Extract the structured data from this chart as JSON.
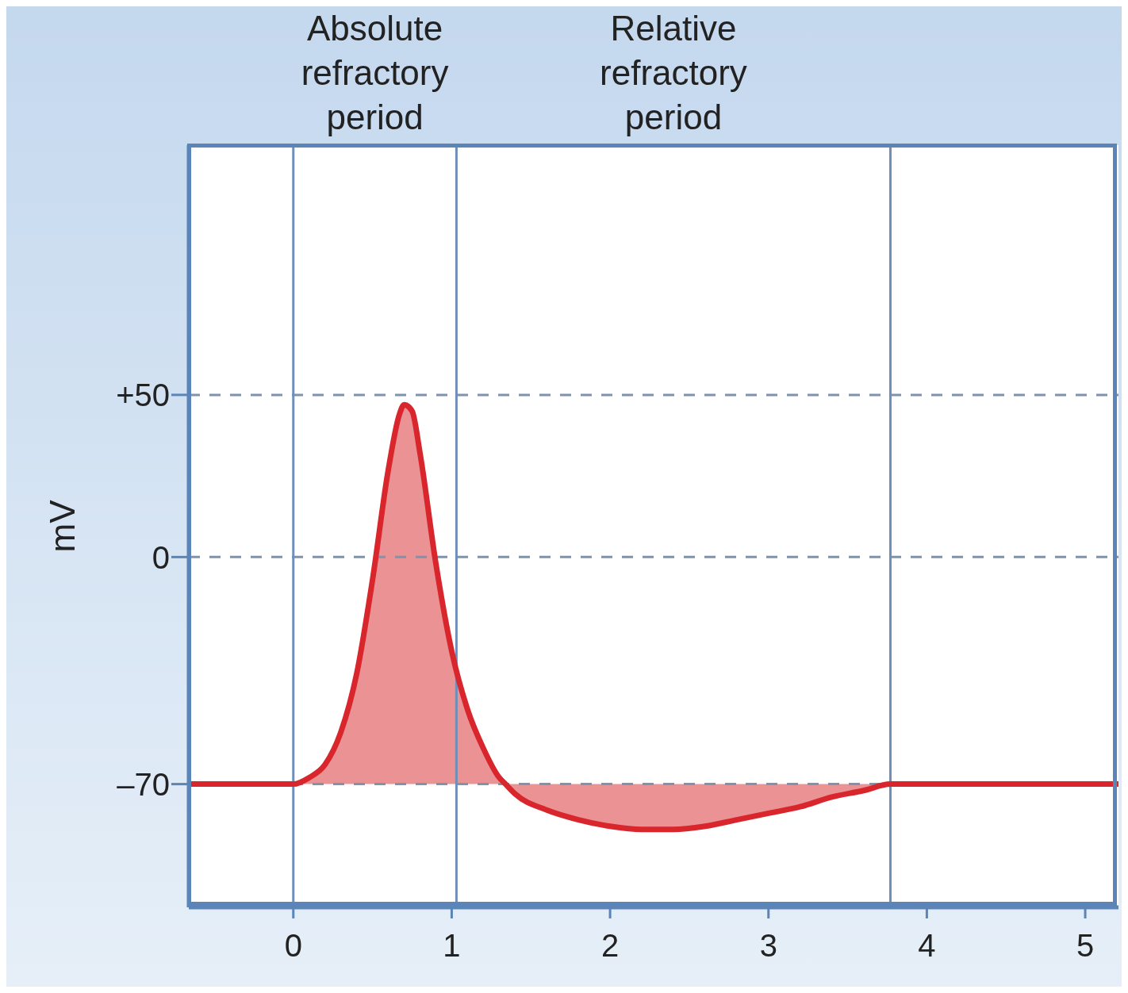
{
  "chart_data": {
    "type": "line",
    "ylabel": "mV",
    "x": [
      -0.66,
      0,
      0.1,
      0.2,
      0.3,
      0.4,
      0.5,
      0.6,
      0.67,
      0.7,
      0.75,
      0.8,
      0.9,
      1.0,
      1.1,
      1.2,
      1.3,
      1.34,
      1.4,
      1.6,
      1.8,
      2.0,
      2.2,
      2.4,
      2.6,
      2.8,
      3.0,
      3.2,
      3.4,
      3.6,
      3.77,
      4.0,
      5.21
    ],
    "series": [
      {
        "color": "#d8262c",
        "values": [
          -70,
          -70,
          -68,
          -64,
          -54,
          -36,
          -7,
          27,
          44,
          47,
          45,
          32,
          -2,
          -29,
          -47,
          -59,
          -68,
          -70,
          -73,
          -78,
          -81,
          -83,
          -84,
          -84,
          -83,
          -81,
          -79,
          -77,
          -74,
          -72,
          -70,
          -70,
          -70
        ],
        "lower": [
          -70,
          -70,
          -70,
          -70,
          -70,
          -70,
          -70,
          -70,
          -70,
          -70,
          -70,
          -70,
          -70,
          -70,
          -70,
          -70,
          -70,
          -70,
          -73,
          -78,
          -81,
          -83,
          -84,
          -84,
          -83,
          -81,
          -79,
          -77,
          -74,
          -72,
          -70,
          -70,
          -70
        ],
        "upper": [
          -70,
          -70,
          -68,
          -64,
          -54,
          -36,
          -7,
          27,
          44,
          47,
          45,
          32,
          -2,
          -29,
          -47,
          -59,
          -68,
          -70,
          -70,
          -70,
          -70,
          -70,
          -70,
          -70,
          -70,
          -70,
          -70,
          -70,
          -70,
          -70,
          -70,
          -70,
          -70
        ]
      }
    ],
    "xlim": [
      -0.66,
      5.21
    ],
    "xticks": [
      0,
      1,
      2,
      3,
      4,
      5
    ],
    "ylim": [
      -108,
      127
    ],
    "yticks": [
      {
        "value": -70,
        "label": "–70"
      },
      0,
      {
        "value": 50,
        "label": "+50"
      }
    ],
    "ref_lines": [
      {
        "axis": "y",
        "value": 50,
        "line_style": "dashed",
        "color": "#7f93ad"
      },
      {
        "axis": "y",
        "value": 0,
        "line_style": "dashed",
        "color": "#7f93ad"
      },
      {
        "axis": "y",
        "value": -70,
        "line_style": "dashed",
        "color": "#7f93ad"
      },
      {
        "axis": "x",
        "value": 0,
        "color": "#6f8fb8"
      },
      {
        "axis": "x",
        "value": 1.03,
        "color": "#6f8fb8"
      },
      {
        "axis": "x",
        "value": 3.77,
        "color": "#6f8fb8"
      }
    ],
    "annotations": [
      "Absolute refractory period",
      "Relative refractory period"
    ],
    "grid": false,
    "legend": false
  }
}
